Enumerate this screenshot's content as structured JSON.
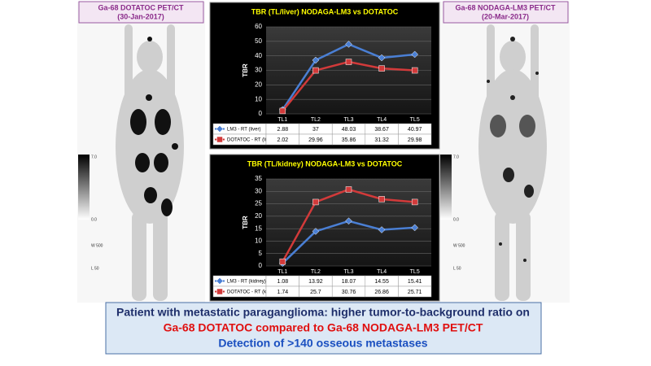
{
  "left_image": {
    "title": "Ga-68 DOTATOC PET/CT",
    "date": "(30-Jan-2017)",
    "scale_labels": [
      "7.0",
      "0.0",
      "W 500",
      "L 50"
    ]
  },
  "right_image": {
    "title": "Ga-68 NODAGA-LM3 PET/CT",
    "date": "(20-Mar-2017)",
    "scale_labels": [
      "7.0",
      "0.0",
      "W 500",
      "L 50"
    ]
  },
  "chart_data": [
    {
      "type": "line",
      "title": "TBR (TL/liver) NODAGA-LM3 vs DOTATOC",
      "y_label": "TBR",
      "categories": [
        "TL1",
        "TL2",
        "TL3",
        "TL4",
        "TL5"
      ],
      "series": [
        {
          "name": "LM3 - RT (liver)",
          "color": "#4a7fd4",
          "values": [
            2.88,
            37,
            48.03,
            38.67,
            40.97
          ]
        },
        {
          "name": "DOTATOC - RT (liver)",
          "color": "#d23a3a",
          "values": [
            2.02,
            29.96,
            35.86,
            31.32,
            29.98
          ]
        }
      ],
      "ylim": [
        0,
        60
      ],
      "yticks": [
        0,
        10,
        20,
        30,
        40,
        50,
        60
      ],
      "grid": true
    },
    {
      "type": "line",
      "title": "TBR (TL/kidney) NODAGA-LM3 vs DOTATOC",
      "y_label": "TBR",
      "categories": [
        "TL1",
        "TL2",
        "TL3",
        "TL4",
        "TL5"
      ],
      "series": [
        {
          "name": "LM3 - RT (kidney)",
          "color": "#4a7fd4",
          "values": [
            1.08,
            13.92,
            18.07,
            14.55,
            15.41
          ]
        },
        {
          "name": "DOTATOC - RT (kidney)",
          "color": "#d23a3a",
          "values": [
            1.74,
            25.7,
            30.76,
            26.86,
            25.71
          ]
        }
      ],
      "ylim": [
        0,
        35
      ],
      "yticks": [
        0,
        5,
        10,
        15,
        20,
        25,
        30,
        35
      ],
      "grid": true
    }
  ],
  "caption": {
    "lines": [
      "Patient with metastatic paraganglioma: higher tumor-to-background ratio on",
      "Ga-68 DOTATOC compared to Ga-68 NODAGA-LM3 PET/CT",
      "Detection of >140 osseous metastases"
    ]
  }
}
